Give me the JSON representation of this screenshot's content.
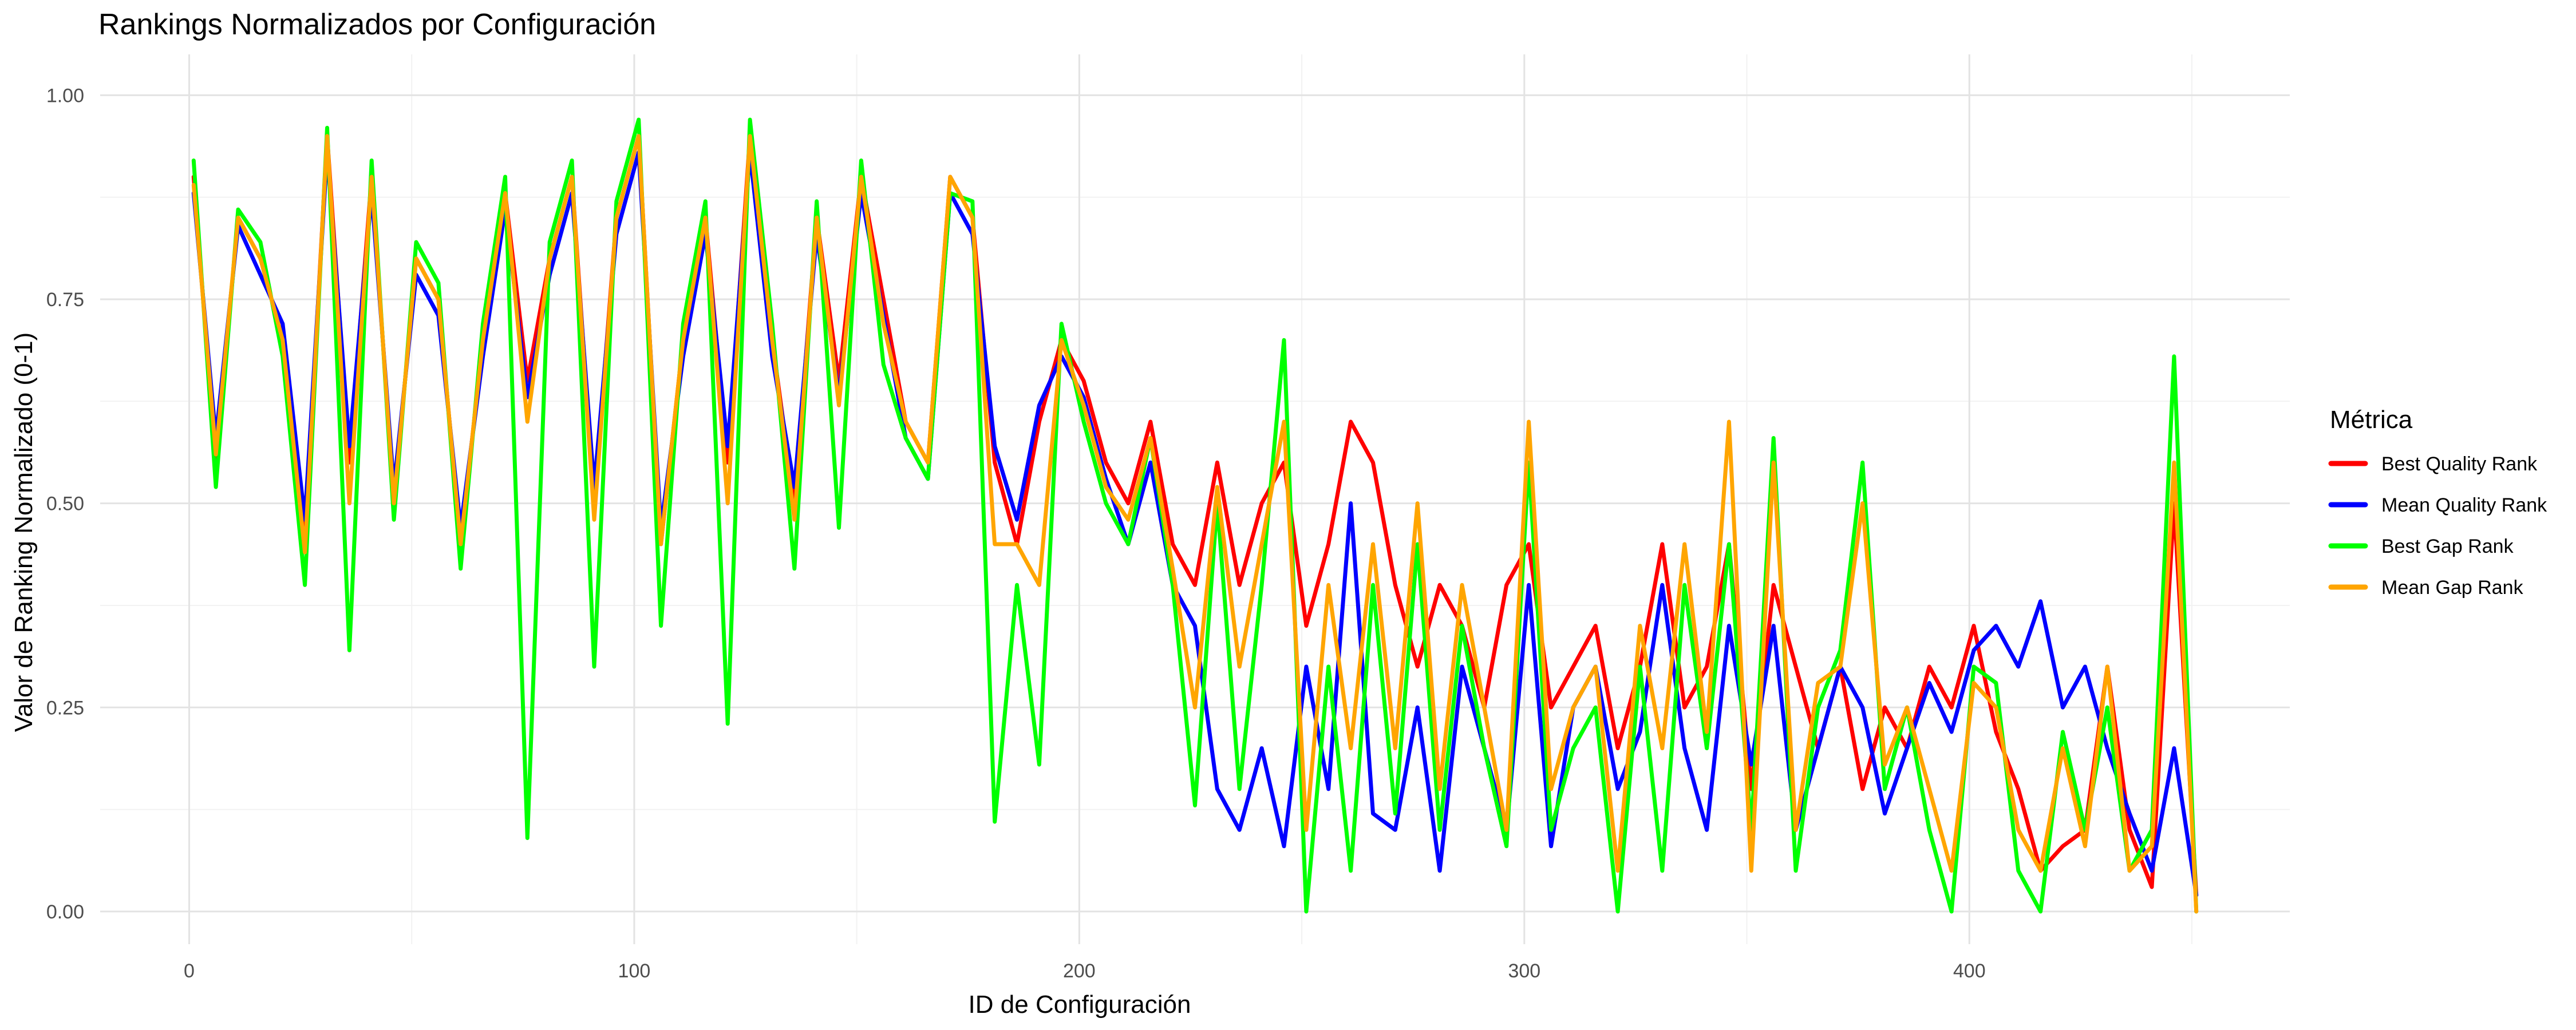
{
  "chart_data": {
    "type": "line",
    "title": "Rankings Normalizados por Configuración",
    "xlabel": "ID de Configuración",
    "ylabel": "Valor de Ranking Normalizado (0-1)",
    "xlim": [
      -20,
      472
    ],
    "ylim": [
      -0.04,
      1.05
    ],
    "x_ticks": [
      0,
      100,
      200,
      300,
      400
    ],
    "x_tick_labels": [
      "0",
      "100",
      "200",
      "300",
      "400"
    ],
    "y_ticks": [
      0.0,
      0.25,
      0.5,
      0.75,
      1.0
    ],
    "y_tick_labels": [
      "0.00",
      "0.25",
      "0.50",
      "0.75",
      "1.00"
    ],
    "grid": true,
    "legend": {
      "title": "Métrica",
      "position": "right"
    },
    "x_start": 1,
    "x_step": 5,
    "series": [
      {
        "name": "Best Quality Rank",
        "color": "#ff0000",
        "values": [
          0.9,
          0.55,
          0.85,
          0.8,
          0.7,
          0.45,
          0.95,
          0.55,
          0.9,
          0.5,
          0.8,
          0.75,
          0.45,
          0.7,
          0.88,
          0.65,
          0.8,
          0.9,
          0.5,
          0.85,
          0.95,
          0.45,
          0.7,
          0.85,
          0.55,
          0.95,
          0.7,
          0.5,
          0.85,
          0.65,
          0.9,
          0.75,
          0.6,
          0.55,
          0.9,
          0.85,
          0.55,
          0.45,
          0.6,
          0.7,
          0.65,
          0.55,
          0.5,
          0.6,
          0.45,
          0.4,
          0.55,
          0.4,
          0.5,
          0.55,
          0.35,
          0.45,
          0.6,
          0.55,
          0.4,
          0.3,
          0.4,
          0.35,
          0.25,
          0.4,
          0.45,
          0.25,
          0.3,
          0.35,
          0.2,
          0.3,
          0.45,
          0.25,
          0.3,
          0.45,
          0.15,
          0.4,
          0.3,
          0.2,
          0.3,
          0.15,
          0.25,
          0.2,
          0.3,
          0.25,
          0.35,
          0.22,
          0.15,
          0.05,
          0.08,
          0.1,
          0.3,
          0.1,
          0.03,
          0.5,
          0.02
        ]
      },
      {
        "name": "Mean Quality Rank",
        "color": "#0000ff",
        "values": [
          0.88,
          0.58,
          0.84,
          0.78,
          0.72,
          0.48,
          0.93,
          0.57,
          0.88,
          0.52,
          0.78,
          0.73,
          0.47,
          0.68,
          0.86,
          0.63,
          0.78,
          0.88,
          0.52,
          0.83,
          0.93,
          0.47,
          0.68,
          0.83,
          0.57,
          0.93,
          0.68,
          0.52,
          0.83,
          0.63,
          0.88,
          0.73,
          0.58,
          0.53,
          0.88,
          0.83,
          0.57,
          0.48,
          0.62,
          0.68,
          0.63,
          0.53,
          0.45,
          0.55,
          0.4,
          0.35,
          0.15,
          0.1,
          0.2,
          0.08,
          0.3,
          0.15,
          0.5,
          0.12,
          0.1,
          0.25,
          0.05,
          0.3,
          0.2,
          0.1,
          0.4,
          0.08,
          0.25,
          0.3,
          0.15,
          0.22,
          0.4,
          0.2,
          0.1,
          0.35,
          0.18,
          0.35,
          0.1,
          0.2,
          0.3,
          0.25,
          0.12,
          0.2,
          0.28,
          0.22,
          0.32,
          0.35,
          0.3,
          0.38,
          0.25,
          0.3,
          0.2,
          0.12,
          0.05,
          0.2,
          0.02
        ]
      },
      {
        "name": "Best Gap Rank",
        "color": "#00ff00",
        "values": [
          0.92,
          0.52,
          0.86,
          0.82,
          0.68,
          0.4,
          0.96,
          0.32,
          0.92,
          0.48,
          0.82,
          0.77,
          0.42,
          0.72,
          0.9,
          0.09,
          0.82,
          0.92,
          0.3,
          0.87,
          0.97,
          0.35,
          0.72,
          0.87,
          0.23,
          0.97,
          0.72,
          0.42,
          0.87,
          0.47,
          0.92,
          0.67,
          0.58,
          0.53,
          0.88,
          0.87,
          0.11,
          0.4,
          0.18,
          0.72,
          0.6,
          0.5,
          0.45,
          0.58,
          0.4,
          0.13,
          0.5,
          0.15,
          0.4,
          0.7,
          0.0,
          0.3,
          0.05,
          0.4,
          0.12,
          0.45,
          0.1,
          0.35,
          0.2,
          0.08,
          0.55,
          0.1,
          0.2,
          0.25,
          0.0,
          0.3,
          0.05,
          0.4,
          0.2,
          0.45,
          0.1,
          0.58,
          0.05,
          0.25,
          0.32,
          0.55,
          0.15,
          0.25,
          0.1,
          0.0,
          0.3,
          0.28,
          0.05,
          0.0,
          0.22,
          0.1,
          0.25,
          0.05,
          0.1,
          0.68,
          0.0
        ]
      },
      {
        "name": "Mean Gap Rank",
        "color": "#ffa500",
        "values": [
          0.89,
          0.56,
          0.85,
          0.8,
          0.7,
          0.44,
          0.95,
          0.5,
          0.9,
          0.5,
          0.8,
          0.75,
          0.45,
          0.7,
          0.88,
          0.6,
          0.8,
          0.9,
          0.48,
          0.85,
          0.95,
          0.45,
          0.7,
          0.85,
          0.5,
          0.95,
          0.7,
          0.48,
          0.85,
          0.62,
          0.9,
          0.72,
          0.6,
          0.55,
          0.9,
          0.85,
          0.45,
          0.45,
          0.4,
          0.7,
          0.62,
          0.52,
          0.48,
          0.58,
          0.42,
          0.25,
          0.52,
          0.3,
          0.45,
          0.6,
          0.1,
          0.4,
          0.2,
          0.45,
          0.2,
          0.5,
          0.15,
          0.4,
          0.25,
          0.1,
          0.6,
          0.15,
          0.25,
          0.3,
          0.05,
          0.35,
          0.2,
          0.45,
          0.22,
          0.6,
          0.05,
          0.55,
          0.1,
          0.28,
          0.3,
          0.5,
          0.18,
          0.25,
          0.15,
          0.05,
          0.28,
          0.25,
          0.1,
          0.05,
          0.2,
          0.08,
          0.3,
          0.05,
          0.08,
          0.55,
          0.0
        ]
      }
    ]
  }
}
